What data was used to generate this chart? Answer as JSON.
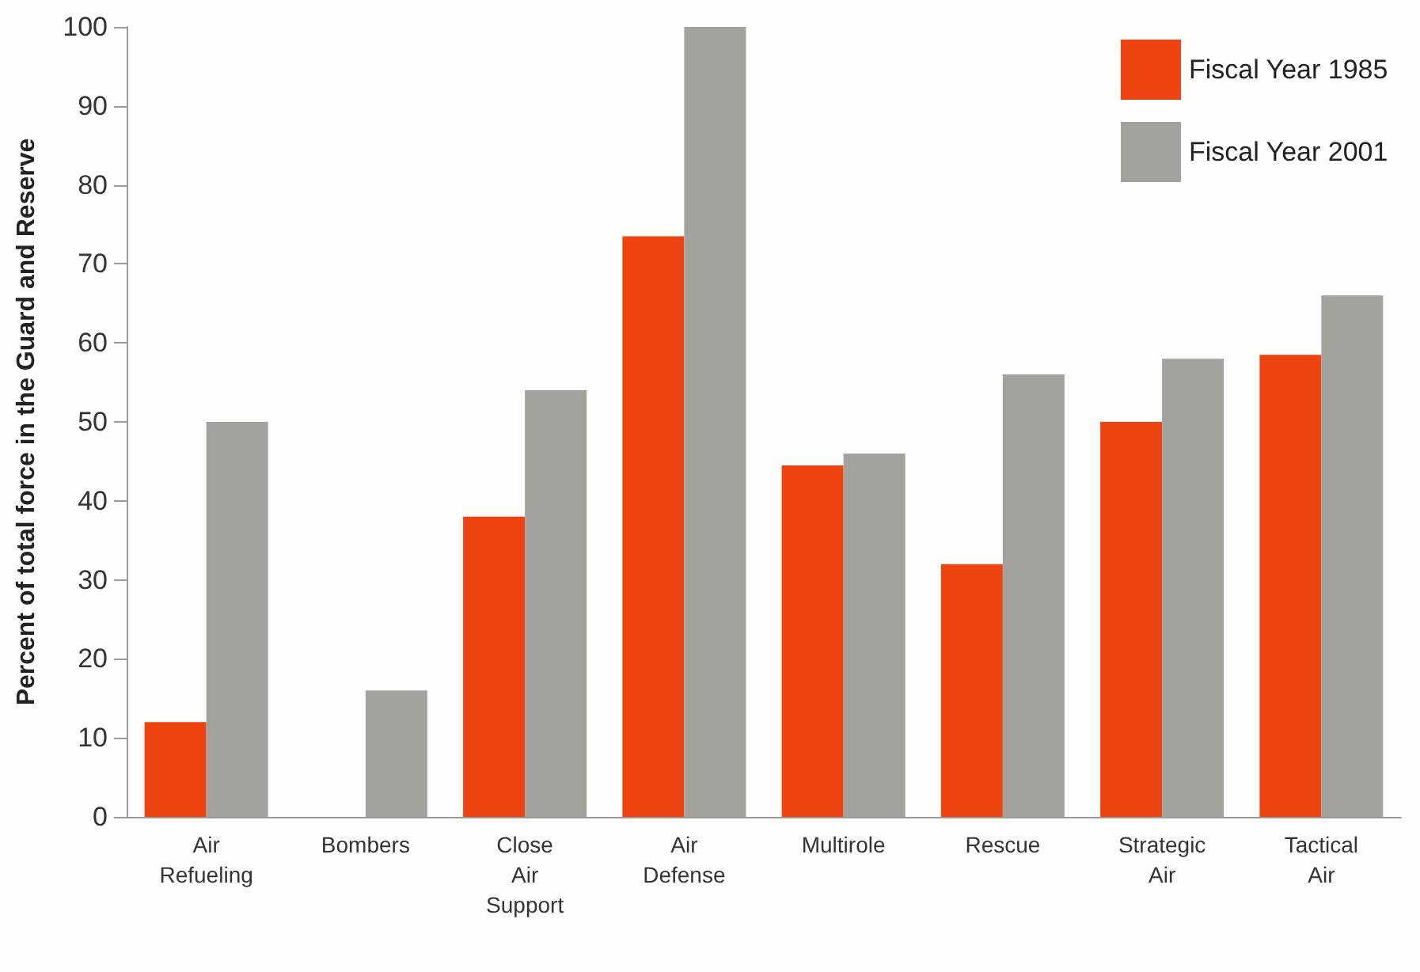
{
  "chart_data": {
    "type": "bar",
    "ylabel": "Percent of total force in the Guard and Reserve",
    "categories": [
      "Air Refueling",
      "Bombers",
      "Close Air Support",
      "Air Defense",
      "Multirole",
      "Rescue",
      "Strategic Air",
      "Tactical Air"
    ],
    "series": [
      {
        "name": "Fiscal Year 1985",
        "color": "#ee4411",
        "values": [
          12,
          0,
          38,
          73.5,
          44.5,
          32,
          50,
          58.5
        ]
      },
      {
        "name": "Fiscal Year 2001",
        "color": "#a3a29d",
        "values": [
          50,
          16,
          54,
          100,
          46,
          56,
          58,
          66
        ]
      }
    ],
    "ylim": [
      0,
      100
    ],
    "yticks": [
      0,
      10,
      20,
      30,
      40,
      50,
      60,
      70,
      80,
      90,
      100
    ],
    "grid": false,
    "legend": "top right"
  }
}
